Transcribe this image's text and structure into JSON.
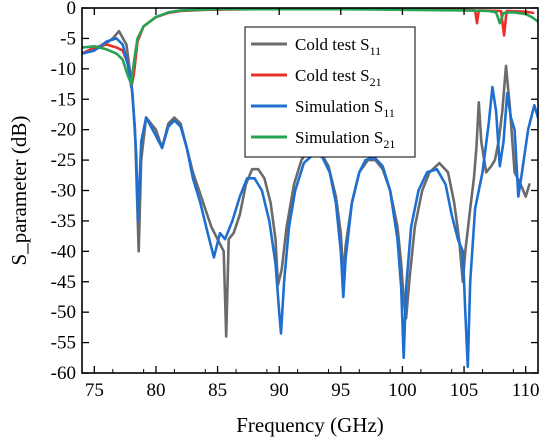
{
  "chart_data": {
    "type": "line",
    "xlabel": "Frequency (GHz)",
    "ylabel": "S_parameter (dB)",
    "xlim": [
      74,
      111
    ],
    "ylim": [
      -60,
      0
    ],
    "xticks": [
      75,
      80,
      85,
      90,
      95,
      100,
      105,
      110
    ],
    "yticks": [
      0,
      -5,
      -10,
      -15,
      -20,
      -25,
      -30,
      -35,
      -40,
      -45,
      -50,
      -55,
      -60
    ],
    "grid": false,
    "legend_position": "top-right",
    "series": [
      {
        "name": "Cold test S11",
        "legend_main": "Cold test S",
        "legend_sub": "11",
        "color": "#6b6b6b",
        "points": [
          [
            74.5,
            -7
          ],
          [
            75.5,
            -6.5
          ],
          [
            76.5,
            -5
          ],
          [
            77,
            -3.8
          ],
          [
            77.6,
            -6
          ],
          [
            78,
            -12
          ],
          [
            78.3,
            -20
          ],
          [
            78.6,
            -40
          ],
          [
            78.8,
            -25
          ],
          [
            79.2,
            -18
          ],
          [
            80,
            -20
          ],
          [
            80.5,
            -23
          ],
          [
            81,
            -19
          ],
          [
            81.5,
            -18
          ],
          [
            82,
            -19
          ],
          [
            82.5,
            -23
          ],
          [
            83,
            -27
          ],
          [
            83.5,
            -30
          ],
          [
            84,
            -33
          ],
          [
            84.5,
            -36
          ],
          [
            85,
            -38
          ],
          [
            85.5,
            -40
          ],
          [
            85.7,
            -54
          ],
          [
            85.9,
            -38
          ],
          [
            86.3,
            -37
          ],
          [
            86.8,
            -34
          ],
          [
            87.3,
            -29
          ],
          [
            87.8,
            -26.5
          ],
          [
            88.3,
            -26.5
          ],
          [
            88.8,
            -28
          ],
          [
            89.3,
            -32
          ],
          [
            89.7,
            -38
          ],
          [
            89.9,
            -45.5
          ],
          [
            90.2,
            -43
          ],
          [
            90.6,
            -36
          ],
          [
            91.2,
            -29
          ],
          [
            91.8,
            -25
          ],
          [
            92.5,
            -23
          ],
          [
            93.3,
            -23.5
          ],
          [
            94,
            -26
          ],
          [
            94.6,
            -31
          ],
          [
            95,
            -37
          ],
          [
            95.2,
            -44
          ],
          [
            95.4,
            -39
          ],
          [
            95.9,
            -32
          ],
          [
            96.5,
            -27
          ],
          [
            97.2,
            -25
          ],
          [
            97.8,
            -25
          ],
          [
            98.4,
            -26.5
          ],
          [
            99,
            -30
          ],
          [
            99.6,
            -36
          ],
          [
            99.9,
            -42
          ],
          [
            100.1,
            -48
          ],
          [
            100.3,
            -51
          ],
          [
            100.6,
            -44
          ],
          [
            101,
            -36
          ],
          [
            101.6,
            -30
          ],
          [
            102.2,
            -27
          ],
          [
            103,
            -25.5
          ],
          [
            103.7,
            -27
          ],
          [
            104.2,
            -32
          ],
          [
            104.6,
            -38
          ],
          [
            104.9,
            -45
          ],
          [
            105.1,
            -40
          ],
          [
            105.5,
            -33
          ],
          [
            105.8,
            -28
          ],
          [
            106,
            -23
          ],
          [
            106.2,
            -15.5
          ],
          [
            106.4,
            -22
          ],
          [
            106.8,
            -27
          ],
          [
            107.2,
            -26
          ],
          [
            107.5,
            -25
          ],
          [
            107.8,
            -22
          ],
          [
            108.1,
            -17
          ],
          [
            108.4,
            -9.5
          ],
          [
            108.7,
            -16
          ],
          [
            109.1,
            -27
          ],
          [
            109.6,
            -29
          ],
          [
            110,
            -31
          ],
          [
            110.3,
            -29
          ]
        ]
      },
      {
        "name": "Cold test S21",
        "legend_main": "Cold test S",
        "legend_sub": "21",
        "color": "#e8302a",
        "points": [
          [
            74,
            -7.5
          ],
          [
            75,
            -6.5
          ],
          [
            76,
            -6
          ],
          [
            76.8,
            -6.5
          ],
          [
            77.3,
            -7
          ],
          [
            77.7,
            -9
          ],
          [
            78,
            -13
          ],
          [
            78.2,
            -11
          ],
          [
            78.5,
            -5.5
          ],
          [
            79,
            -3
          ],
          [
            80,
            -1.5
          ],
          [
            81,
            -0.8
          ],
          [
            82,
            -0.5
          ],
          [
            84,
            -0.3
          ],
          [
            88,
            -0.2
          ],
          [
            95,
            -0.2
          ],
          [
            100,
            -0.2
          ],
          [
            105,
            -0.3
          ],
          [
            105.9,
            -0.4
          ],
          [
            106.05,
            -2.5
          ],
          [
            106.2,
            -0.4
          ],
          [
            108,
            -0.5
          ],
          [
            108.25,
            -4.5
          ],
          [
            108.45,
            -0.5
          ],
          [
            110,
            -0.6
          ],
          [
            110.6,
            -0.8
          ]
        ]
      },
      {
        "name": "Simulation S11",
        "legend_main": "Simulation S",
        "legend_sub": "11",
        "color": "#1f6fd0",
        "points": [
          [
            74,
            -7.5
          ],
          [
            75,
            -7
          ],
          [
            76,
            -5.5
          ],
          [
            76.8,
            -5
          ],
          [
            77.3,
            -6
          ],
          [
            77.8,
            -10
          ],
          [
            78.1,
            -14
          ],
          [
            78.4,
            -24
          ],
          [
            78.55,
            -35
          ],
          [
            78.8,
            -22
          ],
          [
            79.2,
            -18
          ],
          [
            80,
            -21
          ],
          [
            80.5,
            -23
          ],
          [
            81,
            -19.5
          ],
          [
            81.5,
            -18.5
          ],
          [
            82,
            -19.5
          ],
          [
            82.5,
            -23
          ],
          [
            83,
            -28
          ],
          [
            83.6,
            -32
          ],
          [
            84.2,
            -37
          ],
          [
            84.7,
            -41
          ],
          [
            85.2,
            -37
          ],
          [
            85.6,
            -38
          ],
          [
            86.2,
            -35
          ],
          [
            86.8,
            -31
          ],
          [
            87.4,
            -28
          ],
          [
            88,
            -28
          ],
          [
            88.6,
            -30
          ],
          [
            89.2,
            -35
          ],
          [
            89.7,
            -42
          ],
          [
            90,
            -50
          ],
          [
            90.15,
            -53.5
          ],
          [
            90.4,
            -45
          ],
          [
            90.8,
            -36
          ],
          [
            91.3,
            -30
          ],
          [
            92,
            -25.5
          ],
          [
            92.8,
            -24
          ],
          [
            93.5,
            -24.5
          ],
          [
            94.1,
            -27
          ],
          [
            94.6,
            -32
          ],
          [
            95,
            -40
          ],
          [
            95.2,
            -47.5
          ],
          [
            95.4,
            -41
          ],
          [
            95.9,
            -32
          ],
          [
            96.5,
            -27
          ],
          [
            97,
            -25
          ],
          [
            97.7,
            -24.5
          ],
          [
            98.4,
            -26
          ],
          [
            99,
            -30
          ],
          [
            99.6,
            -38
          ],
          [
            99.9,
            -46
          ],
          [
            100.1,
            -57.5
          ],
          [
            100.3,
            -46
          ],
          [
            100.7,
            -36
          ],
          [
            101.3,
            -30
          ],
          [
            102,
            -27
          ],
          [
            102.8,
            -26.5
          ],
          [
            103.5,
            -29
          ],
          [
            104,
            -34
          ],
          [
            104.5,
            -38
          ],
          [
            104.9,
            -40
          ],
          [
            105.1,
            -50
          ],
          [
            105.3,
            -59
          ],
          [
            105.5,
            -45
          ],
          [
            105.9,
            -33
          ],
          [
            106.5,
            -27
          ],
          [
            107,
            -19
          ],
          [
            107.3,
            -13
          ],
          [
            107.6,
            -17
          ],
          [
            107.9,
            -26
          ],
          [
            108.2,
            -22
          ],
          [
            108.5,
            -14
          ],
          [
            108.8,
            -18
          ],
          [
            109.1,
            -20
          ],
          [
            109.4,
            -31
          ],
          [
            109.7,
            -27
          ],
          [
            110.2,
            -20
          ],
          [
            110.7,
            -16
          ],
          [
            111,
            -18
          ]
        ]
      },
      {
        "name": "Simulation S21",
        "legend_main": "Simulation S",
        "legend_sub": "21",
        "color": "#27a356",
        "points": [
          [
            74,
            -6.5
          ],
          [
            75,
            -6.3
          ],
          [
            76,
            -6.8
          ],
          [
            76.8,
            -7.5
          ],
          [
            77.3,
            -8.5
          ],
          [
            77.7,
            -11
          ],
          [
            78,
            -12.5
          ],
          [
            78.2,
            -9
          ],
          [
            78.5,
            -5
          ],
          [
            79,
            -3
          ],
          [
            80,
            -1.5
          ],
          [
            81,
            -0.7
          ],
          [
            82,
            -0.4
          ],
          [
            85,
            -0.2
          ],
          [
            90,
            -0.2
          ],
          [
            95,
            -0.2
          ],
          [
            100,
            -0.3
          ],
          [
            105,
            -0.4
          ],
          [
            107,
            -0.5
          ],
          [
            107.6,
            -0.7
          ],
          [
            107.9,
            -2.5
          ],
          [
            108.2,
            -0.8
          ],
          [
            109,
            -0.7
          ],
          [
            110,
            -1
          ],
          [
            110.5,
            -1.5
          ],
          [
            111,
            -2.2
          ]
        ]
      }
    ]
  }
}
